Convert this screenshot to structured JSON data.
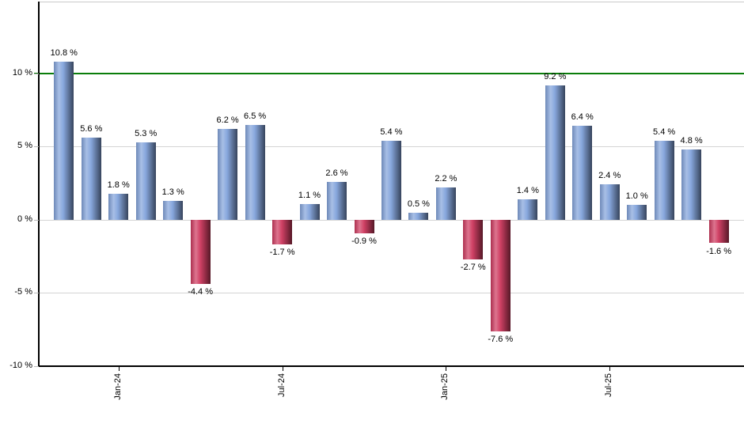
{
  "chart_data": {
    "type": "bar",
    "title": "",
    "values": [
      10.8,
      5.6,
      1.8,
      5.3,
      1.3,
      -4.4,
      6.2,
      6.5,
      -1.7,
      1.1,
      2.6,
      -0.9,
      5.4,
      0.5,
      2.2,
      -2.7,
      -7.6,
      1.4,
      9.2,
      6.4,
      2.4,
      1.0,
      5.4,
      4.8,
      -1.6
    ],
    "bar_label_suffix": " %",
    "x_tick_labels": [
      "Jan-24",
      "Jul-24",
      "Jan-25",
      "Jul-25"
    ],
    "x_tick_bar_indexes": [
      2,
      8,
      14,
      20
    ],
    "y_tick_values": [
      10,
      5,
      0,
      -5,
      -10
    ],
    "y_tick_labels": [
      "10 %",
      "5 %",
      "0 %",
      "-5 %",
      "-10 %"
    ],
    "ylim": [
      -10,
      14.9
    ],
    "grid": true,
    "legend": "none",
    "reference_line": {
      "value": 10,
      "color": "#0b7d0b"
    },
    "colors": {
      "positive_bar": "#83a4dc",
      "negative_bar": "#cf3a5f",
      "axis": "#000000",
      "gridline": "#d4d4d4",
      "plot_top_border": "#c9c9c9",
      "label_text": "#000000",
      "background": "#ffffff"
    }
  }
}
